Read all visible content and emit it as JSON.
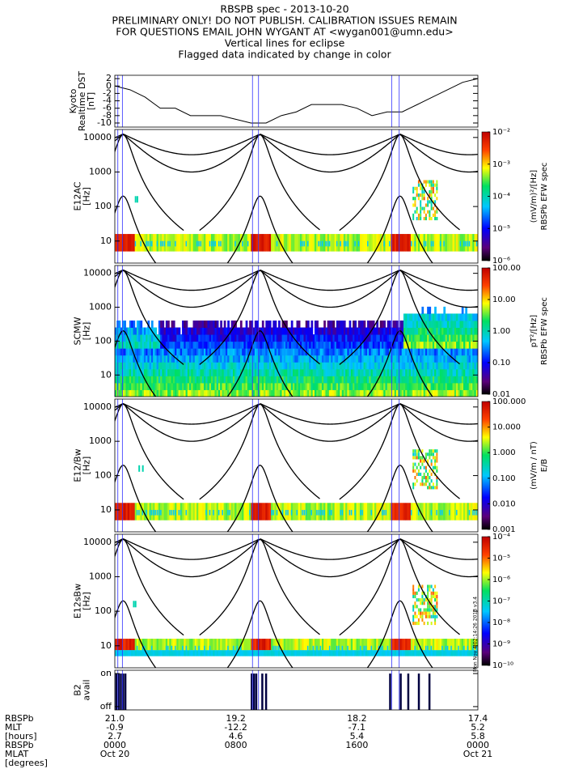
{
  "title_lines": [
    "RBSPB spec - 2013-10-20",
    "PRELIMINARY ONLY! DO NOT PUBLISH. CALIBRATION ISSUES REMAIN",
    "FOR QUESTIONS EMAIL JOHN WYGANT AT <wygan001@umn.edu>",
    "Vertical lines for eclipse",
    "Flagged data indicated by change in color"
  ],
  "xlim": [
    0,
    24
  ],
  "eclipse_hours": [
    0.2,
    0.5,
    9.1,
    9.5,
    18.3,
    18.8
  ],
  "chart_data": [
    {
      "type": "line",
      "ylabel": [
        "Kyoto",
        "Realtime DST",
        "[nT]"
      ],
      "x": [
        0,
        1,
        2,
        3,
        4,
        5,
        6,
        7,
        8,
        9,
        10,
        11,
        12,
        13,
        14,
        15,
        16,
        17,
        18,
        19,
        20,
        21,
        22,
        23,
        24
      ],
      "values": [
        0,
        -1,
        -3,
        -6,
        -6,
        -8,
        -8,
        -8,
        -9,
        -10,
        -10,
        -8,
        -7,
        -5,
        -5,
        -5,
        -6,
        -8,
        -7,
        -7,
        -5,
        -3,
        -1,
        1,
        2
      ],
      "color": "#000000",
      "ylim": [
        -11.1,
        2.9
      ],
      "yticks": [
        2,
        0,
        -2,
        -4,
        -6,
        -8,
        -10
      ]
    },
    {
      "type": "spectrogram",
      "ylabel": [
        "E12AC",
        "[Hz]"
      ],
      "yscale": "log",
      "ylim": [
        2.3,
        17000
      ],
      "yticks": [
        10,
        100,
        1000,
        10000
      ],
      "colorbar_label": [
        "(mV/m)²/[Hz]",
        "RBSPb EFW spec"
      ],
      "zscale": "log",
      "zlim": [
        1e-06,
        0.01
      ],
      "zticks": [
        {
          "value": 0.01,
          "label": "10⁻²"
        },
        {
          "value": 0.001,
          "label": "10⁻³"
        },
        {
          "value": 0.0001,
          "label": "10⁻⁴"
        },
        {
          "value": 1e-05,
          "label": "10⁻⁵"
        },
        {
          "value": 1e-06,
          "label": "10⁻⁶"
        }
      ]
    },
    {
      "type": "spectrogram",
      "ylabel": [
        "SCMW",
        "[Hz]"
      ],
      "yscale": "log",
      "ylim": [
        2.3,
        17000
      ],
      "yticks": [
        10,
        100,
        1000,
        10000
      ],
      "colorbar_label": [
        "pT²/[Hz]",
        "RBSPb EFW spec"
      ],
      "zscale": "log",
      "zlim": [
        0.01,
        100
      ],
      "zticks": [
        {
          "value": 100,
          "label": "100.00"
        },
        {
          "value": 10,
          "label": "10.00"
        },
        {
          "value": 1,
          "label": "1.00"
        },
        {
          "value": 0.1,
          "label": "0.10"
        },
        {
          "value": 0.01,
          "label": "0.01"
        }
      ]
    },
    {
      "type": "spectrogram",
      "ylabel": [
        "E12/Bw",
        "[Hz]"
      ],
      "yscale": "log",
      "ylim": [
        2.3,
        17000
      ],
      "yticks": [
        10,
        100,
        1000,
        10000
      ],
      "colorbar_label": [
        "(mV/m / nT)",
        "E/B"
      ],
      "zscale": "log",
      "zlim": [
        0.001,
        100
      ],
      "zticks": [
        {
          "value": 100,
          "label": "100.000"
        },
        {
          "value": 10,
          "label": "10.000"
        },
        {
          "value": 1,
          "label": "1.000"
        },
        {
          "value": 0.1,
          "label": "0.100"
        },
        {
          "value": 0.01,
          "label": "0.010"
        },
        {
          "value": 0.001,
          "label": "0.001"
        }
      ]
    },
    {
      "type": "spectrogram",
      "ylabel": [
        "E12sBw",
        "[Hz]"
      ],
      "yscale": "log",
      "ylim": [
        2.3,
        17000
      ],
      "yticks": [
        10,
        100,
        1000,
        10000
      ],
      "colorbar_label": [],
      "zscale": "log",
      "zlim": [
        1e-10,
        0.0001
      ],
      "zticks": [
        {
          "value": 0.0001,
          "label": "10⁻⁴"
        },
        {
          "value": 1e-05,
          "label": "10⁻⁵"
        },
        {
          "value": 1e-06,
          "label": "10⁻⁶"
        },
        {
          "value": 1e-07,
          "label": "10⁻⁷"
        },
        {
          "value": 1e-08,
          "label": "10⁻⁸"
        },
        {
          "value": 1e-09,
          "label": "10⁻⁹"
        },
        {
          "value": 1e-10,
          "label": "10⁻¹⁰"
        }
      ]
    },
    {
      "type": "event",
      "ylabel": [
        "B2",
        "avail"
      ],
      "ylim": [
        -0.1,
        1.1
      ],
      "yticks": [
        {
          "value": 1,
          "label": "on"
        },
        {
          "value": 0,
          "label": "off"
        }
      ],
      "x": [
        0.1,
        0.25,
        0.4,
        0.55,
        0.7,
        9.05,
        9.2,
        9.35,
        9.75,
        10.0,
        18.2,
        18.9,
        19.4,
        20.1,
        20.8
      ],
      "values": [
        1,
        1,
        1,
        1,
        1,
        1,
        1,
        1,
        1,
        1,
        1,
        1,
        1,
        1,
        1
      ],
      "color": "#000040"
    }
  ],
  "timestamp": "Mon Nov 4 02:14:26 2013 v3.4",
  "ephemeris": {
    "labels": [
      "RBSPb",
      "MLT",
      "[hours]",
      "RBSPb",
      "MLAT",
      "[degrees]"
    ],
    "rows": [
      [
        "21.0",
        "19.2",
        "18.2",
        "17.4"
      ],
      [
        "-0.9",
        "-12.2",
        "-7.1",
        "5.2"
      ],
      [
        "2.7",
        "4.6",
        "5.4",
        "5.8"
      ],
      [
        "0000",
        "0800",
        "1600",
        "0000"
      ],
      [
        "Oct 20",
        "",
        "",
        "Oct 21"
      ]
    ]
  }
}
